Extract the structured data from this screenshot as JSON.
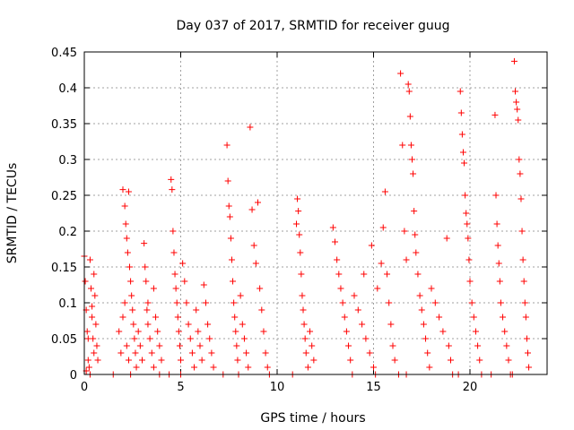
{
  "chart_data": {
    "type": "scatter",
    "title": "Day 037 of 2017, SRMTID for receiver guug",
    "xlabel": "GPS time / hours",
    "ylabel": "SRMTID / TECUs",
    "xlim": [
      0,
      24
    ],
    "ylim": [
      0,
      0.45
    ],
    "x_ticks": [
      0,
      5,
      10,
      15,
      20
    ],
    "x_tick_labels": [
      "0",
      "5",
      "10",
      "15",
      "20"
    ],
    "y_ticks": [
      0,
      0.05,
      0.1,
      0.15,
      0.2,
      0.25,
      0.3,
      0.35,
      0.4,
      0.45
    ],
    "y_tick_labels": [
      "0",
      "0.05",
      "0.1",
      "0.15",
      "0.2",
      "0.25",
      "0.3",
      "0.35",
      "0.4",
      "0.45"
    ],
    "grid": true,
    "marker": "+",
    "color": "#ff0000",
    "series": [
      {
        "name": "SRMTID",
        "points": [
          [
            0.0,
            0.165
          ],
          [
            0.05,
            0.13
          ],
          [
            0.1,
            0.09
          ],
          [
            0.15,
            0.06
          ],
          [
            0.2,
            0.02
          ],
          [
            0.25,
            0.01
          ],
          [
            0.3,
            0.16
          ],
          [
            0.35,
            0.12
          ],
          [
            0.4,
            0.08
          ],
          [
            0.45,
            0.05
          ],
          [
            0.5,
            0.03
          ],
          [
            0.55,
            0.11
          ],
          [
            0.6,
            0.07
          ],
          [
            0.65,
            0.04
          ],
          [
            0.7,
            0.02
          ],
          [
            0.1,
            0.005
          ],
          [
            0.3,
            0.0
          ],
          [
            0.5,
            0.14
          ],
          [
            0.4,
            0.095
          ],
          [
            0.2,
            0.05
          ],
          [
            1.5,
            0.0
          ],
          [
            1.8,
            0.06
          ],
          [
            1.9,
            0.03
          ],
          [
            2.0,
            0.258
          ],
          [
            2.1,
            0.235
          ],
          [
            2.15,
            0.21
          ],
          [
            2.2,
            0.19
          ],
          [
            2.25,
            0.17
          ],
          [
            2.3,
            0.255
          ],
          [
            2.35,
            0.15
          ],
          [
            2.4,
            0.13
          ],
          [
            2.45,
            0.11
          ],
          [
            2.5,
            0.09
          ],
          [
            2.55,
            0.07
          ],
          [
            2.6,
            0.05
          ],
          [
            2.65,
            0.03
          ],
          [
            2.7,
            0.01
          ],
          [
            2.0,
            0.08
          ],
          [
            2.1,
            0.1
          ],
          [
            2.2,
            0.04
          ],
          [
            2.3,
            0.02
          ],
          [
            2.4,
            0.0
          ],
          [
            2.8,
            0.06
          ],
          [
            2.9,
            0.04
          ],
          [
            3.0,
            0.02
          ],
          [
            3.1,
            0.183
          ],
          [
            3.15,
            0.15
          ],
          [
            3.2,
            0.13
          ],
          [
            3.25,
            0.09
          ],
          [
            3.3,
            0.07
          ],
          [
            3.4,
            0.05
          ],
          [
            3.5,
            0.03
          ],
          [
            3.6,
            0.01
          ],
          [
            3.7,
            0.08
          ],
          [
            3.8,
            0.06
          ],
          [
            3.9,
            0.04
          ],
          [
            4.0,
            0.02
          ],
          [
            3.3,
            0.1
          ],
          [
            3.6,
            0.12
          ],
          [
            3.9,
            0.0
          ],
          [
            4.5,
            0.272
          ],
          [
            4.55,
            0.258
          ],
          [
            4.6,
            0.2
          ],
          [
            4.65,
            0.17
          ],
          [
            4.7,
            0.14
          ],
          [
            4.75,
            0.12
          ],
          [
            4.8,
            0.1
          ],
          [
            4.85,
            0.08
          ],
          [
            4.9,
            0.06
          ],
          [
            4.95,
            0.04
          ],
          [
            5.0,
            0.02
          ],
          [
            5.1,
            0.155
          ],
          [
            5.2,
            0.13
          ],
          [
            5.3,
            0.1
          ],
          [
            5.4,
            0.07
          ],
          [
            5.5,
            0.05
          ],
          [
            5.6,
            0.03
          ],
          [
            5.7,
            0.01
          ],
          [
            5.8,
            0.09
          ],
          [
            5.9,
            0.06
          ],
          [
            6.0,
            0.04
          ],
          [
            6.1,
            0.02
          ],
          [
            6.2,
            0.125
          ],
          [
            6.3,
            0.1
          ],
          [
            6.4,
            0.07
          ],
          [
            6.5,
            0.05
          ],
          [
            6.6,
            0.03
          ],
          [
            6.7,
            0.01
          ],
          [
            4.4,
            0.0
          ],
          [
            5.0,
            0.0
          ],
          [
            7.4,
            0.32
          ],
          [
            7.45,
            0.27
          ],
          [
            7.5,
            0.235
          ],
          [
            7.55,
            0.22
          ],
          [
            7.6,
            0.19
          ],
          [
            7.65,
            0.16
          ],
          [
            7.7,
            0.13
          ],
          [
            7.75,
            0.1
          ],
          [
            7.8,
            0.08
          ],
          [
            7.85,
            0.06
          ],
          [
            7.9,
            0.04
          ],
          [
            7.95,
            0.02
          ],
          [
            8.0,
            0.0
          ],
          [
            8.1,
            0.11
          ],
          [
            8.2,
            0.07
          ],
          [
            8.3,
            0.05
          ],
          [
            8.4,
            0.03
          ],
          [
            8.5,
            0.01
          ],
          [
            8.6,
            0.345
          ],
          [
            8.7,
            0.23
          ],
          [
            8.8,
            0.18
          ],
          [
            8.9,
            0.155
          ],
          [
            9.0,
            0.24
          ],
          [
            9.1,
            0.12
          ],
          [
            9.2,
            0.09
          ],
          [
            9.3,
            0.06
          ],
          [
            9.4,
            0.03
          ],
          [
            9.5,
            0.01
          ],
          [
            7.2,
            0.0
          ],
          [
            9.6,
            0.0
          ],
          [
            10.8,
            0.0
          ],
          [
            11.0,
            0.21
          ],
          [
            11.05,
            0.245
          ],
          [
            11.1,
            0.228
          ],
          [
            11.15,
            0.195
          ],
          [
            11.2,
            0.17
          ],
          [
            11.25,
            0.14
          ],
          [
            11.3,
            0.11
          ],
          [
            11.35,
            0.09
          ],
          [
            11.4,
            0.07
          ],
          [
            11.45,
            0.05
          ],
          [
            11.5,
            0.03
          ],
          [
            11.6,
            0.01
          ],
          [
            11.7,
            0.06
          ],
          [
            11.8,
            0.04
          ],
          [
            11.9,
            0.02
          ],
          [
            12.9,
            0.205
          ],
          [
            13.0,
            0.185
          ],
          [
            13.1,
            0.16
          ],
          [
            13.2,
            0.14
          ],
          [
            13.3,
            0.12
          ],
          [
            13.4,
            0.1
          ],
          [
            13.5,
            0.08
          ],
          [
            13.6,
            0.06
          ],
          [
            13.7,
            0.04
          ],
          [
            13.8,
            0.02
          ],
          [
            13.9,
            0.0
          ],
          [
            14.0,
            0.11
          ],
          [
            14.2,
            0.09
          ],
          [
            14.4,
            0.07
          ],
          [
            14.6,
            0.05
          ],
          [
            14.8,
            0.03
          ],
          [
            15.0,
            0.01
          ],
          [
            15.2,
            0.12
          ],
          [
            15.4,
            0.155
          ],
          [
            15.5,
            0.205
          ],
          [
            15.6,
            0.255
          ],
          [
            15.7,
            0.14
          ],
          [
            15.8,
            0.1
          ],
          [
            15.9,
            0.07
          ],
          [
            16.0,
            0.04
          ],
          [
            16.1,
            0.02
          ],
          [
            14.5,
            0.14
          ],
          [
            14.9,
            0.18
          ],
          [
            15.1,
            0.0
          ],
          [
            16.3,
            0.0
          ],
          [
            16.4,
            0.42
          ],
          [
            16.5,
            0.32
          ],
          [
            16.6,
            0.2
          ],
          [
            16.7,
            0.16
          ],
          [
            16.8,
            0.405
          ],
          [
            16.85,
            0.395
          ],
          [
            16.9,
            0.36
          ],
          [
            16.95,
            0.32
          ],
          [
            17.0,
            0.3
          ],
          [
            17.05,
            0.28
          ],
          [
            17.1,
            0.228
          ],
          [
            17.15,
            0.195
          ],
          [
            17.2,
            0.17
          ],
          [
            17.3,
            0.14
          ],
          [
            17.4,
            0.11
          ],
          [
            17.5,
            0.09
          ],
          [
            17.6,
            0.07
          ],
          [
            17.7,
            0.05
          ],
          [
            17.8,
            0.03
          ],
          [
            17.9,
            0.01
          ],
          [
            18.0,
            0.12
          ],
          [
            18.2,
            0.1
          ],
          [
            18.4,
            0.08
          ],
          [
            18.6,
            0.06
          ],
          [
            18.8,
            0.19
          ],
          [
            18.9,
            0.04
          ],
          [
            19.0,
            0.02
          ],
          [
            19.1,
            0.0
          ],
          [
            16.7,
            0.0
          ],
          [
            19.5,
            0.395
          ],
          [
            19.55,
            0.365
          ],
          [
            19.6,
            0.335
          ],
          [
            19.65,
            0.31
          ],
          [
            19.7,
            0.295
          ],
          [
            19.75,
            0.25
          ],
          [
            19.8,
            0.225
          ],
          [
            19.85,
            0.21
          ],
          [
            19.9,
            0.19
          ],
          [
            19.95,
            0.16
          ],
          [
            20.0,
            0.13
          ],
          [
            20.1,
            0.1
          ],
          [
            20.2,
            0.08
          ],
          [
            20.3,
            0.06
          ],
          [
            20.4,
            0.04
          ],
          [
            20.5,
            0.02
          ],
          [
            20.6,
            0.0
          ],
          [
            19.4,
            0.0
          ],
          [
            21.3,
            0.362
          ],
          [
            21.35,
            0.25
          ],
          [
            21.4,
            0.21
          ],
          [
            21.45,
            0.18
          ],
          [
            21.5,
            0.155
          ],
          [
            21.55,
            0.13
          ],
          [
            21.6,
            0.1
          ],
          [
            21.7,
            0.08
          ],
          [
            21.8,
            0.06
          ],
          [
            21.9,
            0.04
          ],
          [
            22.0,
            0.02
          ],
          [
            22.1,
            0.0
          ],
          [
            22.3,
            0.437
          ],
          [
            22.35,
            0.395
          ],
          [
            22.4,
            0.38
          ],
          [
            22.45,
            0.37
          ],
          [
            22.5,
            0.355
          ],
          [
            22.55,
            0.3
          ],
          [
            22.6,
            0.28
          ],
          [
            22.65,
            0.245
          ],
          [
            22.7,
            0.2
          ],
          [
            22.75,
            0.16
          ],
          [
            22.8,
            0.13
          ],
          [
            22.85,
            0.1
          ],
          [
            22.9,
            0.08
          ],
          [
            22.95,
            0.05
          ],
          [
            23.0,
            0.03
          ],
          [
            23.05,
            0.01
          ],
          [
            21.1,
            0.0
          ],
          [
            22.2,
            0.0
          ]
        ]
      }
    ]
  }
}
